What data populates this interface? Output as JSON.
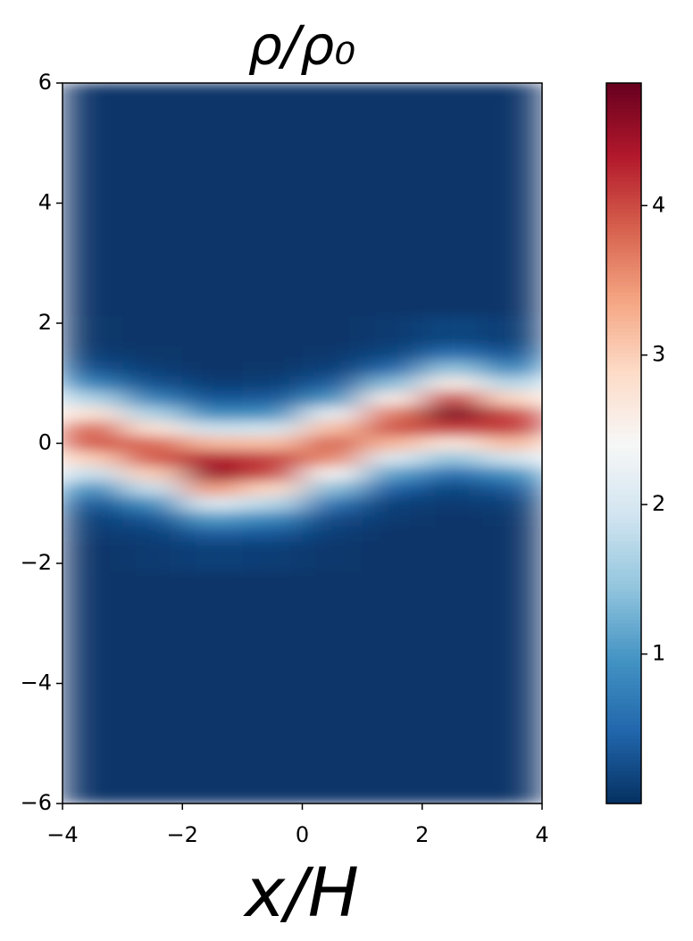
{
  "chart_data": {
    "type": "heatmap",
    "title": "ρ/ρ₀",
    "x_label": "x/H",
    "x": [
      -3.5,
      -2.5,
      -1.5,
      -0.5,
      0.5,
      1.5,
      2.5,
      3.5
    ],
    "y": [
      -4.5,
      -2.5,
      -1.75,
      -1.5,
      -1.25,
      -1,
      -0.75,
      -0.5,
      -0.25,
      0,
      0.25,
      0.5,
      0.75,
      1,
      1.25,
      1.5,
      1.75,
      2.5,
      4.5
    ],
    "z": [
      [
        0.05,
        0.05,
        0.05,
        0.05,
        0.05,
        0.05,
        0.05,
        0.05
      ],
      [
        0.05,
        0.05,
        0.05,
        0.05,
        0.05,
        0.05,
        0.05,
        0.05
      ],
      [
        0.05,
        0.1,
        0.15,
        0.12,
        0.08,
        0.05,
        0.05,
        0.05
      ],
      [
        0.1,
        0.15,
        0.4,
        0.35,
        0.12,
        0.05,
        0.05,
        0.05
      ],
      [
        0.15,
        0.35,
        1.05,
        0.85,
        0.25,
        0.1,
        0.05,
        0.08
      ],
      [
        0.35,
        0.93,
        2.1,
        1.73,
        0.65,
        0.15,
        0.1,
        0.15
      ],
      [
        0.93,
        1.85,
        3.45,
        2.9,
        1.4,
        0.45,
        0.2,
        0.38
      ],
      [
        1.85,
        3.0,
        4.5,
        4.0,
        2.45,
        1.1,
        0.6,
        0.95
      ],
      [
        3.0,
        3.9,
        4.35,
        4.1,
        3.55,
        2.05,
        1.45,
        1.95
      ],
      [
        3.9,
        3.8,
        3.2,
        3.15,
        3.85,
        3.2,
        2.65,
        3.15
      ],
      [
        3.8,
        2.75,
        1.9,
        1.95,
        3.15,
        3.95,
        4.05,
        4.1
      ],
      [
        2.75,
        1.65,
        0.9,
        0.95,
        2.2,
        3.65,
        4.7,
        4.0
      ],
      [
        1.65,
        0.8,
        0.35,
        0.38,
        1.0,
        2.55,
        4.05,
        2.9
      ],
      [
        0.8,
        0.3,
        0.12,
        0.15,
        0.4,
        1.4,
        2.6,
        1.7
      ],
      [
        0.3,
        0.12,
        0.05,
        0.06,
        0.15,
        0.55,
        1.45,
        0.85
      ],
      [
        0.12,
        0.06,
        0.05,
        0.05,
        0.08,
        0.2,
        0.6,
        0.33
      ],
      [
        0.06,
        0.05,
        0.05,
        0.05,
        0.05,
        0.1,
        0.2,
        0.12
      ],
      [
        0.05,
        0.05,
        0.05,
        0.05,
        0.05,
        0.05,
        0.05,
        0.05
      ],
      [
        0.05,
        0.05,
        0.05,
        0.05,
        0.05,
        0.05,
        0.05,
        0.05
      ]
    ],
    "xlim": [
      -4,
      4
    ],
    "xticks": [
      {
        "value": -4,
        "label": "−4"
      },
      {
        "value": -2,
        "label": "−2"
      },
      0,
      2,
      4
    ],
    "ylim": [
      -6,
      6
    ],
    "yticks": [
      {
        "value": -6,
        "label": "−6"
      },
      {
        "value": -4,
        "label": "−4"
      },
      {
        "value": -2,
        "label": "−2"
      },
      0,
      2,
      4,
      6
    ],
    "colormap": "RdBu_r",
    "clim": [
      0,
      4.82
    ],
    "cticks": [
      1,
      2,
      3,
      4
    ]
  }
}
